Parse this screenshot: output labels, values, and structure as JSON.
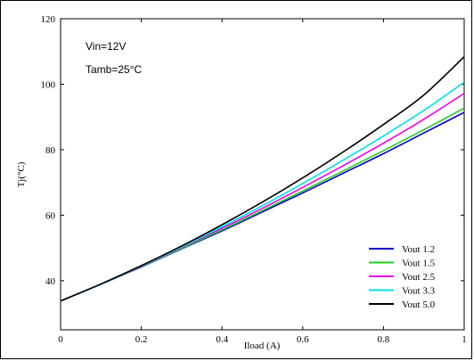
{
  "chart_data": {
    "type": "line",
    "xlabel": "Iload (A)",
    "ylabel": "Tj(°C)",
    "xlim": [
      0,
      1
    ],
    "ylim": [
      25,
      120
    ],
    "xticks": [
      "0",
      "0.2",
      "0.4",
      "0.6",
      "0.8",
      "1"
    ],
    "yticks": [
      "40",
      "60",
      "80",
      "100",
      "120"
    ],
    "annotations": [
      "Vin=12V",
      "Tamb=25°C"
    ],
    "legend_position": "bottom-right",
    "x": [
      0,
      0.1,
      0.2,
      0.3,
      0.4,
      0.5,
      0.6,
      0.7,
      0.8,
      0.9,
      1.0
    ],
    "series": [
      {
        "name": "Vout 1.2",
        "color": "#0000c0",
        "values": [
          33.8,
          38.9,
          44.2,
          49.7,
          55.2,
          61.0,
          66.8,
          72.8,
          78.8,
          85.1,
          91.4
        ]
      },
      {
        "name": "Vout 1.5",
        "color": "#22cc22",
        "values": [
          33.8,
          38.9,
          44.3,
          49.8,
          55.5,
          61.4,
          67.4,
          73.5,
          79.7,
          86.1,
          92.7
        ]
      },
      {
        "name": "Vout 2.5",
        "color": "#ee00ee",
        "values": [
          33.8,
          38.9,
          44.4,
          50.1,
          56.0,
          62.1,
          68.5,
          75.1,
          82.0,
          89.3,
          97.2
        ]
      },
      {
        "name": "Vout 3.3",
        "color": "#00e0e8",
        "values": [
          33.8,
          38.9,
          44.5,
          50.3,
          56.5,
          62.9,
          69.7,
          76.8,
          84.2,
          92.0,
          100.6
        ]
      },
      {
        "name": "Vout 5.0",
        "color": "#000000",
        "values": [
          33.8,
          39.0,
          44.6,
          50.6,
          57.1,
          64.0,
          71.4,
          79.3,
          87.7,
          96.7,
          108.4
        ]
      }
    ]
  }
}
